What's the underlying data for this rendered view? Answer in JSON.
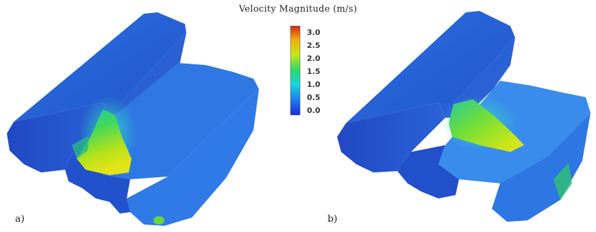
{
  "colorbar": {
    "title": "Velocity Magnitude (m/s)",
    "ticks": [
      "3.0",
      "2.5",
      "2.0",
      "1.5",
      "1.0",
      "0.5",
      "0.0"
    ],
    "range": [
      0.0,
      3.0
    ],
    "colormap": [
      "#1a2cd6",
      "#1f7df0",
      "#18d4e0",
      "#2ad86a",
      "#c8e81a",
      "#f0b010",
      "#d42814"
    ]
  },
  "panels": [
    {
      "label": "a)"
    },
    {
      "label": "b)"
    }
  ]
}
